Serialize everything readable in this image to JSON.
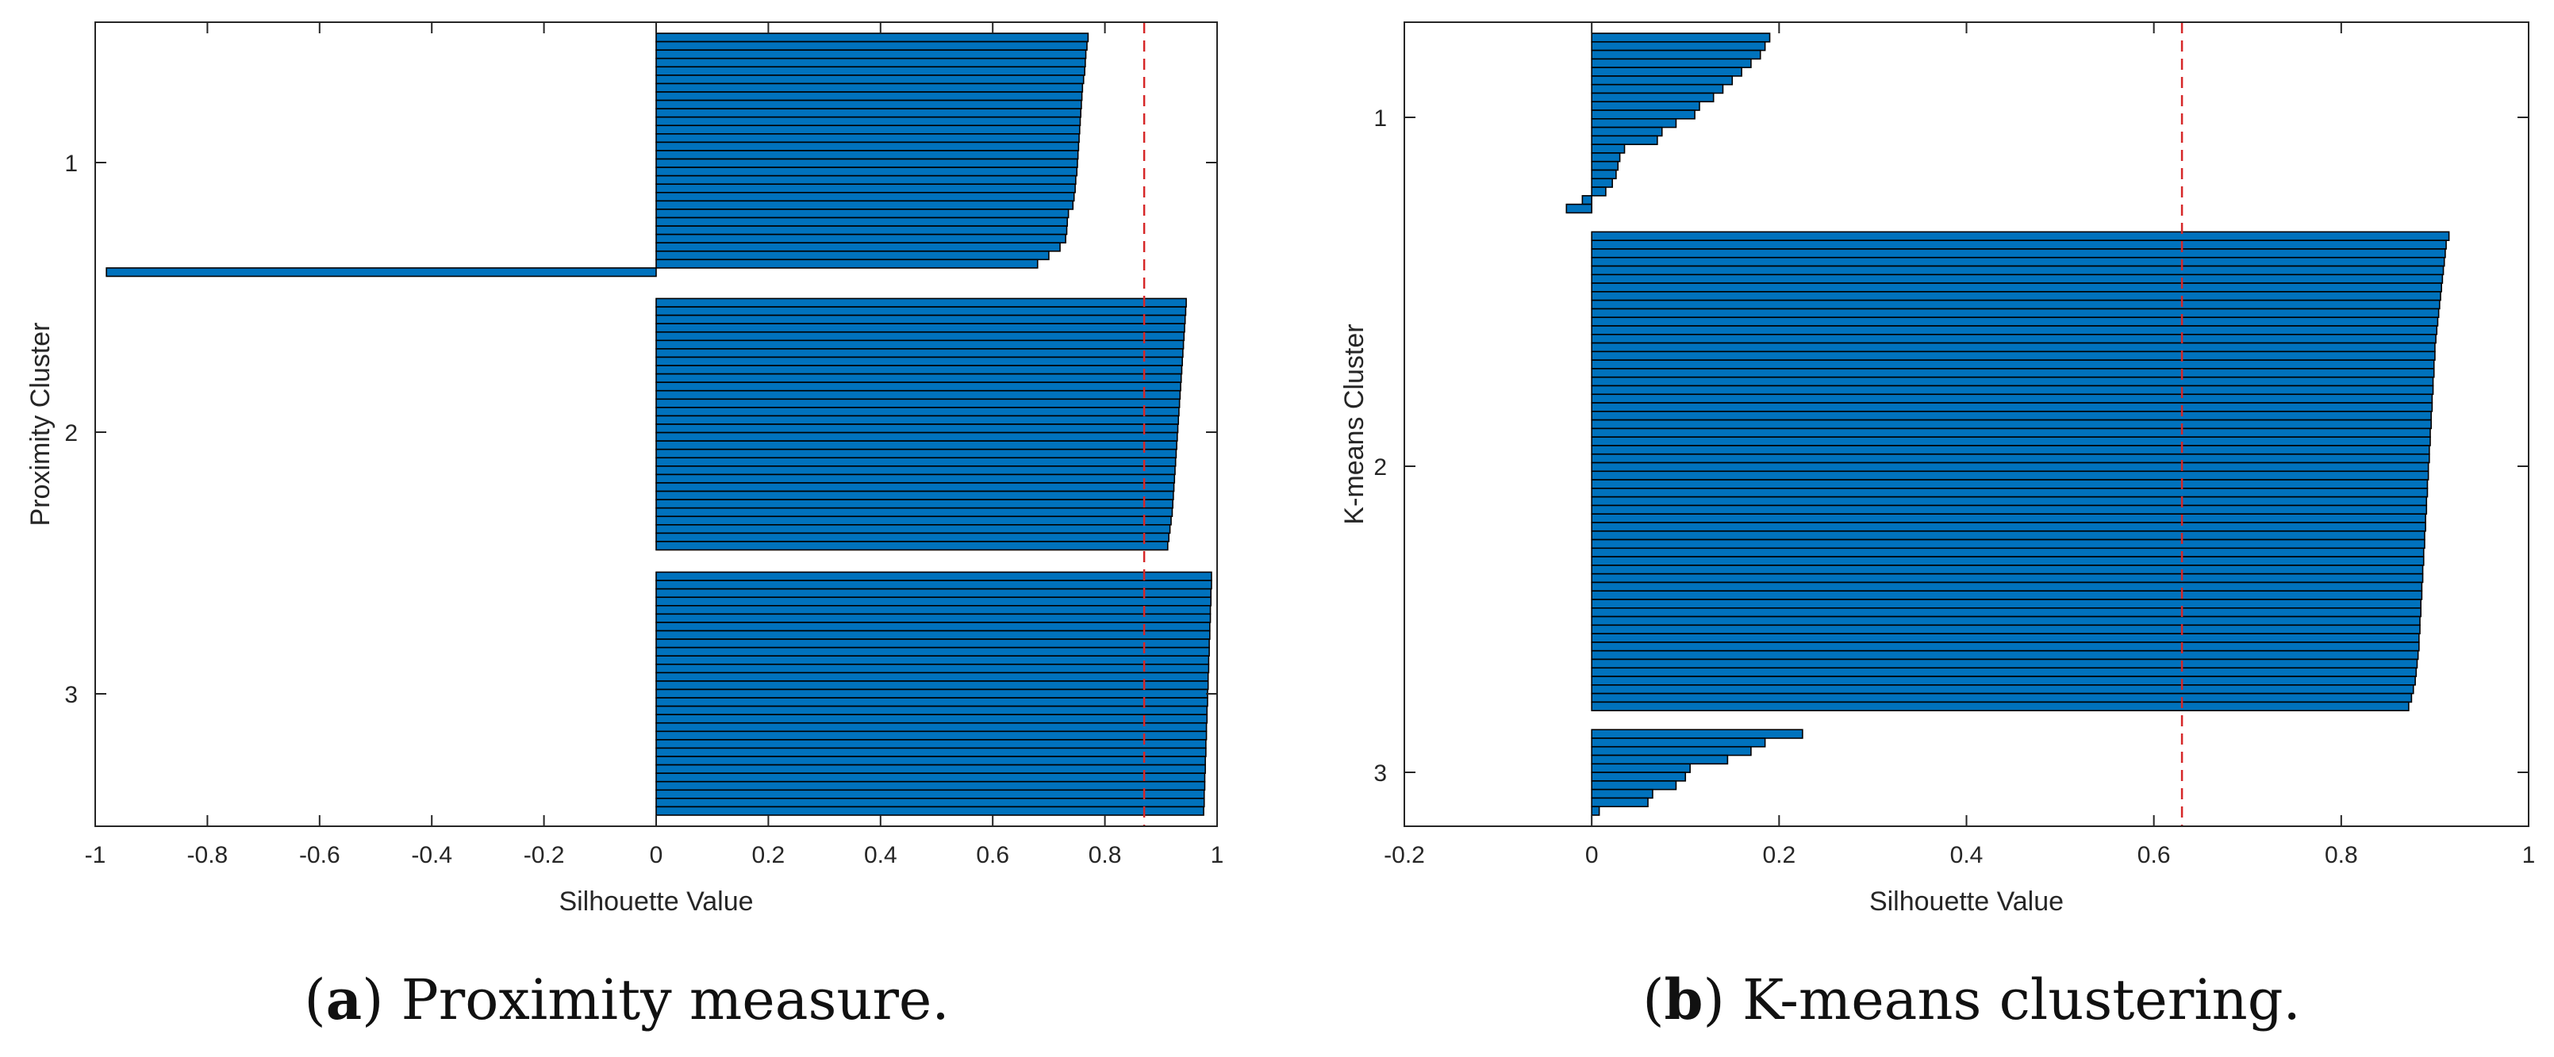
{
  "chart_data": [
    {
      "type": "bar",
      "orientation": "horizontal",
      "title": "",
      "caption_letter": "a",
      "caption_text": " Proximity measure.",
      "xlabel": "Silhouette Value",
      "ylabel": "Proximity Cluster",
      "xlim": [
        -1,
        1
      ],
      "xticks": [
        -1,
        -0.8,
        -0.6,
        -0.4,
        -0.2,
        0,
        0.2,
        0.4,
        0.6,
        0.8,
        1
      ],
      "xtick_labels": [
        "-1",
        "-0.8",
        "-0.6",
        "-0.4",
        "-0.2",
        "0",
        "0.2",
        "0.4",
        "0.6",
        "0.8",
        "1"
      ],
      "yticks": [
        1,
        2,
        3
      ],
      "ytick_labels": [
        "1",
        "2",
        "3"
      ],
      "mean_line": 0.87,
      "bar_color": "#0072bd",
      "mean_line_color": "#d62728",
      "clusters": [
        {
          "label": "1",
          "values": [
            0.77,
            0.768,
            0.766,
            0.765,
            0.764,
            0.762,
            0.76,
            0.759,
            0.758,
            0.757,
            0.756,
            0.755,
            0.754,
            0.753,
            0.752,
            0.751,
            0.75,
            0.748,
            0.747,
            0.745,
            0.743,
            0.735,
            0.733,
            0.732,
            0.73,
            0.72,
            0.7,
            0.68,
            -0.98
          ]
        },
        {
          "label": "2",
          "values": [
            0.945,
            0.944,
            0.943,
            0.942,
            0.941,
            0.94,
            0.939,
            0.938,
            0.937,
            0.936,
            0.935,
            0.934,
            0.933,
            0.932,
            0.931,
            0.93,
            0.929,
            0.928,
            0.927,
            0.926,
            0.925,
            0.924,
            0.923,
            0.922,
            0.921,
            0.92,
            0.918,
            0.916,
            0.914,
            0.912
          ]
        },
        {
          "label": "3",
          "values": [
            0.99,
            0.99,
            0.989,
            0.989,
            0.988,
            0.988,
            0.987,
            0.987,
            0.986,
            0.986,
            0.985,
            0.985,
            0.984,
            0.984,
            0.983,
            0.983,
            0.982,
            0.982,
            0.981,
            0.981,
            0.98,
            0.98,
            0.979,
            0.979,
            0.978,
            0.978,
            0.977,
            0.977,
            0.976
          ]
        }
      ]
    },
    {
      "type": "bar",
      "orientation": "horizontal",
      "title": "",
      "caption_letter": "b",
      "caption_text": " K-means clustering.",
      "xlabel": "Silhouette Value",
      "ylabel": "K-means Cluster",
      "xlim": [
        -0.2,
        1
      ],
      "xticks": [
        -0.2,
        0,
        0.2,
        0.4,
        0.6,
        0.8,
        1
      ],
      "xtick_labels": [
        "-0.2",
        "0",
        "0.2",
        "0.4",
        "0.6",
        "0.8",
        "1"
      ],
      "yticks": [
        1,
        2,
        3
      ],
      "ytick_labels": [
        "1",
        "2",
        "3"
      ],
      "mean_line": 0.63,
      "bar_color": "#0072bd",
      "mean_line_color": "#d62728",
      "clusters": [
        {
          "label": "1",
          "values": [
            0.19,
            0.185,
            0.18,
            0.17,
            0.16,
            0.15,
            0.14,
            0.13,
            0.115,
            0.11,
            0.09,
            0.075,
            0.07,
            0.035,
            0.03,
            0.028,
            0.026,
            0.022,
            0.015,
            -0.01,
            -0.027
          ]
        },
        {
          "label": "2",
          "values": [
            0.915,
            0.912,
            0.911,
            0.91,
            0.909,
            0.908,
            0.907,
            0.906,
            0.905,
            0.904,
            0.903,
            0.902,
            0.901,
            0.9,
            0.9,
            0.899,
            0.899,
            0.898,
            0.898,
            0.897,
            0.897,
            0.896,
            0.896,
            0.895,
            0.895,
            0.894,
            0.894,
            0.893,
            0.893,
            0.892,
            0.892,
            0.891,
            0.891,
            0.89,
            0.89,
            0.889,
            0.889,
            0.888,
            0.888,
            0.887,
            0.887,
            0.886,
            0.886,
            0.885,
            0.885,
            0.884,
            0.884,
            0.883,
            0.883,
            0.882,
            0.881,
            0.88,
            0.879,
            0.877,
            0.875,
            0.872
          ]
        },
        {
          "label": "3",
          "values": [
            0.225,
            0.185,
            0.17,
            0.145,
            0.105,
            0.1,
            0.09,
            0.065,
            0.06,
            0.008
          ]
        }
      ]
    }
  ]
}
